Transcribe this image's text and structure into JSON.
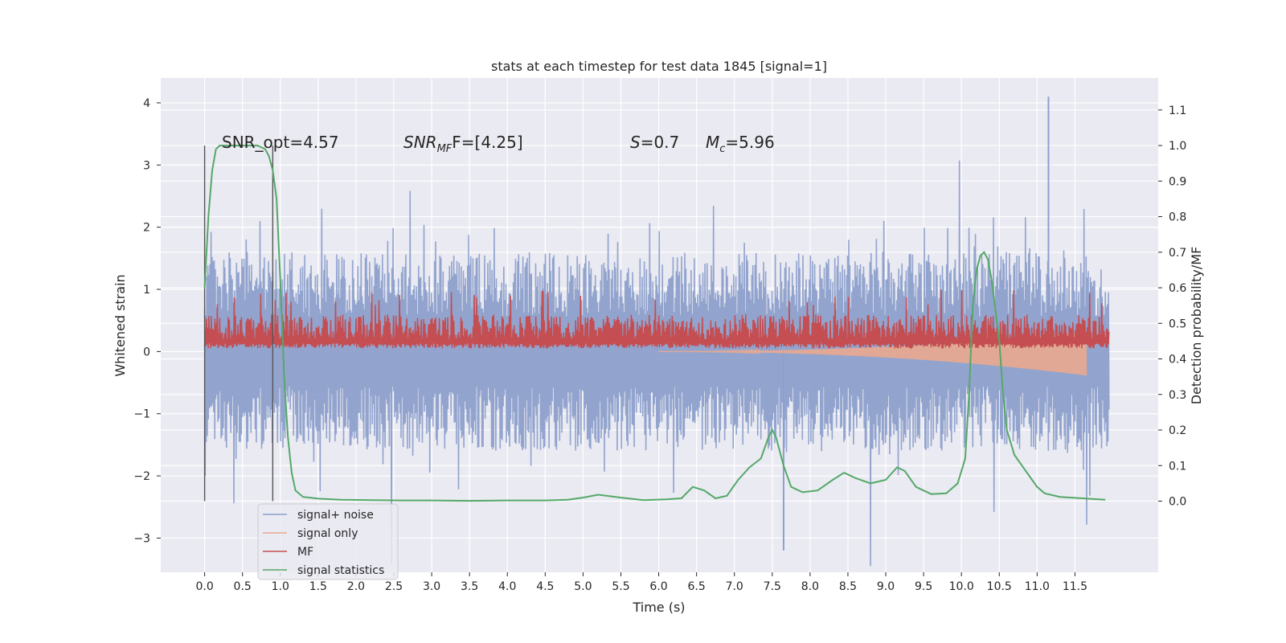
{
  "chart_data": {
    "type": "line",
    "title": "stats at each timestep for test data 1845 [signal=1]",
    "xlabel": "Time (s)",
    "ylabel_left": "Whitened strain",
    "ylabel_right": "Detection probability/MF",
    "xlim": [
      -0.58,
      12.6
    ],
    "ylim_left": [
      -3.55,
      4.4
    ],
    "ylim_right": [
      -0.2,
      1.19
    ],
    "x_ticks": [
      "0.0",
      "0.5",
      "1.0",
      "1.5",
      "2.0",
      "2.5",
      "3.0",
      "3.5",
      "4.0",
      "4.5",
      "5.0",
      "5.5",
      "6.0",
      "6.5",
      "7.0",
      "7.5",
      "8.0",
      "8.5",
      "9.0",
      "9.5",
      "10.0",
      "10.5",
      "11.0",
      "11.5"
    ],
    "y_ticks_left": [
      "−3",
      "−2",
      "−1",
      "0",
      "1",
      "2",
      "3",
      "4"
    ],
    "y_ticks_right": [
      "0.0",
      "0.1",
      "0.2",
      "0.3",
      "0.4",
      "0.5",
      "0.6",
      "0.7",
      "0.8",
      "0.9",
      "1.0",
      "1.1"
    ],
    "grid": true,
    "legend_position": "lower-left",
    "annotations": {
      "snr_opt": "SNR_opt=4.57",
      "snr_mf_main": "SNR",
      "snr_mf_sub": "MF",
      "snr_mf_rest": "F=[4.25]",
      "spin_main": "S",
      "spin_rest": "=0.7",
      "mass_main": "M",
      "mass_sub": "c",
      "mass_rest": "=5.96"
    },
    "vlines_x": [
      0.0,
      0.9
    ],
    "series": [
      {
        "name": "signal+ noise",
        "color": "#8da0cb",
        "axis": "left",
        "envelope": {
          "x_start": 0.0,
          "x_end": 11.95,
          "typical_max": 1.6,
          "typical_min": -1.5,
          "peak_max": 4.1,
          "peak_min": -3.2
        }
      },
      {
        "name": "signal only",
        "color": "#e9a88f",
        "axis": "left",
        "chirp": {
          "x_start": 6.0,
          "x_end": 11.65,
          "end_amplitude": 0.35
        }
      },
      {
        "name": "MF",
        "color": "#c44e52",
        "axis": "left",
        "envelope": {
          "x_start": 0.0,
          "x_end": 11.95,
          "baseline": 0.05,
          "typical_max": 0.6,
          "peak_max": 1.0
        }
      },
      {
        "name": "signal statistics",
        "color": "#55a868",
        "axis": "right",
        "x": [
          0.0,
          0.05,
          0.1,
          0.15,
          0.2,
          0.3,
          0.4,
          0.5,
          0.6,
          0.7,
          0.8,
          0.85,
          0.9,
          0.95,
          1.0,
          1.05,
          1.1,
          1.15,
          1.2,
          1.3,
          1.5,
          1.8,
          2.2,
          2.6,
          3.0,
          3.5,
          4.0,
          4.5,
          4.8,
          5.0,
          5.2,
          5.5,
          5.8,
          6.1,
          6.3,
          6.45,
          6.6,
          6.75,
          6.9,
          7.05,
          7.2,
          7.35,
          7.45,
          7.5,
          7.55,
          7.65,
          7.75,
          7.9,
          8.1,
          8.3,
          8.45,
          8.6,
          8.8,
          9.0,
          9.15,
          9.25,
          9.4,
          9.6,
          9.8,
          9.95,
          10.05,
          10.1,
          10.15,
          10.2,
          10.25,
          10.3,
          10.35,
          10.4,
          10.5,
          10.55,
          10.6,
          10.7,
          10.8,
          10.9,
          11.0,
          11.1,
          11.3,
          11.6,
          11.9
        ],
        "y": [
          0.6,
          0.8,
          0.93,
          0.99,
          1.0,
          1.0,
          1.0,
          1.0,
          1.0,
          1.0,
          0.99,
          0.97,
          0.93,
          0.85,
          0.62,
          0.35,
          0.18,
          0.08,
          0.03,
          0.012,
          0.007,
          0.004,
          0.003,
          0.002,
          0.002,
          0.001,
          0.002,
          0.002,
          0.004,
          0.01,
          0.018,
          0.01,
          0.003,
          0.005,
          0.008,
          0.04,
          0.03,
          0.008,
          0.015,
          0.06,
          0.095,
          0.12,
          0.18,
          0.2,
          0.18,
          0.1,
          0.04,
          0.025,
          0.03,
          0.06,
          0.08,
          0.065,
          0.05,
          0.06,
          0.095,
          0.085,
          0.04,
          0.02,
          0.022,
          0.05,
          0.12,
          0.3,
          0.55,
          0.65,
          0.69,
          0.7,
          0.68,
          0.62,
          0.45,
          0.3,
          0.2,
          0.13,
          0.1,
          0.07,
          0.04,
          0.022,
          0.012,
          0.008,
          0.004
        ]
      }
    ]
  }
}
